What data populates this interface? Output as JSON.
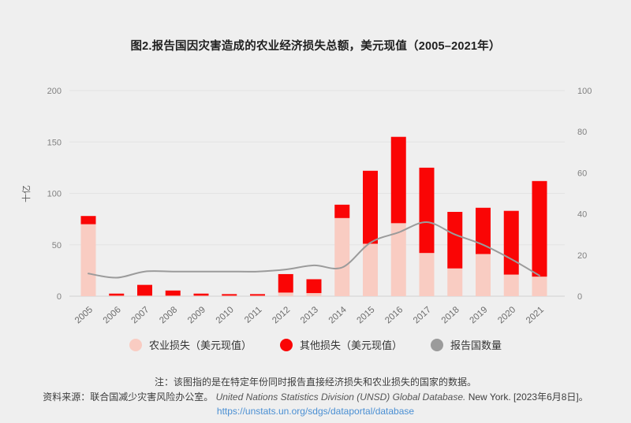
{
  "title": "图2.报告国因灾害造成的农业经济损失总额，美元现值（2005–2021年）",
  "chart_data": {
    "type": "bar",
    "subtype": "stacked-bars-with-line",
    "title": "图2.报告国因灾害造成的农业经济损失总额，美元现值（2005–2021年）",
    "categories": [
      "2005",
      "2006",
      "2007",
      "2008",
      "2009",
      "2010",
      "2011",
      "2012",
      "2013",
      "2014",
      "2015",
      "2016",
      "2017",
      "2018",
      "2019",
      "2020",
      "2021"
    ],
    "series": [
      {
        "name": "农业损失（美元现值）",
        "type": "bar",
        "stack": "loss",
        "color": "#F9CCC2",
        "values": [
          70,
          0.5,
          0.5,
          0.5,
          0.5,
          0.5,
          0.5,
          3.5,
          3,
          76,
          51,
          71,
          42,
          27,
          41,
          21,
          19
        ]
      },
      {
        "name": "其他损失（美元现值）",
        "type": "bar",
        "stack": "loss",
        "color": "#FA0505",
        "values": [
          8,
          2,
          10.5,
          5,
          2,
          1.5,
          1.5,
          18,
          13.5,
          13,
          71,
          84,
          83,
          55,
          45,
          62,
          93
        ]
      },
      {
        "name": "报告国数量",
        "type": "line",
        "axis": "right",
        "color": "#9B9B9B",
        "values": [
          11,
          9,
          12,
          12,
          12,
          12,
          12,
          13,
          15,
          14,
          26,
          31,
          36,
          30,
          25,
          18,
          10
        ]
      }
    ],
    "left_axis": {
      "title": "十亿",
      "min": 0,
      "max": 200,
      "ticks": [
        0,
        50,
        100,
        150,
        200
      ]
    },
    "right_axis": {
      "min": 0,
      "max": 100,
      "ticks": [
        0,
        20,
        40,
        60,
        80,
        100
      ]
    },
    "grid": "horizontal",
    "legend_position": "bottom",
    "colors": {
      "background": "#EFEFEF",
      "gridline": "#E3E3E3",
      "baseline": "#D2D2D2",
      "tick_text": "#818181",
      "x_label_text": "#6B6B6B"
    }
  },
  "legend": {
    "items": [
      {
        "label": "农业损失（美元现值）"
      },
      {
        "label": "其他损失（美元现值）"
      },
      {
        "label": "报告国数量"
      }
    ]
  },
  "footer": {
    "note": "注：该图指的是在特定年份同时报告直接经济损失和农业损失的国家的数据。",
    "source_prefix": "资料来源：联合国减少灾害风险办公室。 ",
    "source_italic": "United Nations Statistics Division (UNSD) Global Database.",
    "source_suffix": " New York. [2023年6月8日]。",
    "link": "https://unstats.un.org/sdgs/dataportal/database"
  }
}
